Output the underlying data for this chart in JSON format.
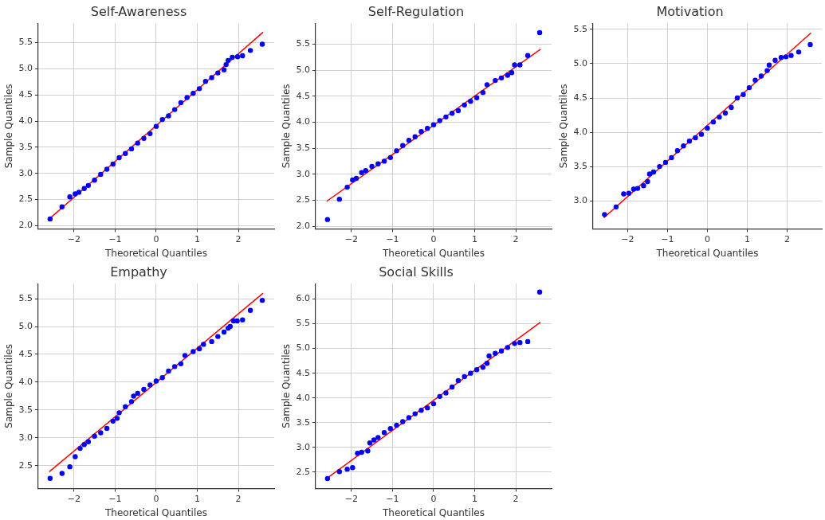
{
  "chart_data": [
    {
      "type": "scatter",
      "title": "Self-Awareness",
      "xlabel": "Theoretical Quantiles",
      "ylabel": "Sample Quantiles",
      "xlim": [
        -2.87,
        2.87
      ],
      "xticks": [
        -2,
        -1,
        0,
        1,
        2
      ],
      "ylim": [
        1.94,
        5.87
      ],
      "yticks": [
        {
          "value": 2,
          "label": "2.0"
        },
        2.5,
        {
          "value": 3,
          "label": "3.0"
        },
        3.5,
        {
          "value": 4,
          "label": "4.0"
        },
        4.5,
        {
          "value": 5,
          "label": "5.0"
        },
        5.5
      ],
      "grid": true,
      "series": [
        {
          "color": "#0000ff",
          "marker": "circle",
          "x": [
            -2.58,
            -2.29,
            -2.1,
            -1.97,
            -1.88,
            -1.75,
            -1.65,
            -1.5,
            -1.35,
            -1.2,
            -1.05,
            -0.9,
            -0.75,
            -0.6,
            -0.45,
            -0.3,
            -0.15,
            0,
            0.15,
            0.3,
            0.45,
            0.6,
            0.75,
            0.9,
            1.05,
            1.2,
            1.35,
            1.5,
            1.65,
            1.7,
            1.75,
            1.85,
            1.98,
            2.1,
            2.29,
            2.58
          ],
          "values": [
            2.13,
            2.36,
            2.55,
            2.61,
            2.64,
            2.71,
            2.77,
            2.87,
            2.98,
            3.08,
            3.18,
            3.3,
            3.38,
            3.47,
            3.58,
            3.67,
            3.76,
            3.9,
            4.03,
            4.1,
            4.22,
            4.35,
            4.45,
            4.53,
            4.62,
            4.76,
            4.83,
            4.92,
            4.98,
            5.08,
            5.16,
            5.22,
            5.23,
            5.25,
            5.35,
            5.47
          ]
        },
        {
          "type": "line",
          "color": "#ff0000",
          "x": [
            -2.6,
            2.6
          ],
          "values": [
            2.13,
            5.7
          ]
        }
      ]
    },
    {
      "type": "scatter",
      "title": "Self-Regulation",
      "xlabel": "Theoretical Quantiles",
      "ylabel": "Sample Quantiles",
      "xlim": [
        -2.87,
        2.87
      ],
      "xticks": [
        -2,
        -1,
        0,
        1,
        2
      ],
      "ylim": [
        1.95,
        5.9
      ],
      "yticks": [
        {
          "value": 2,
          "label": "2.0"
        },
        2.5,
        {
          "value": 3,
          "label": "3.0"
        },
        3.5,
        {
          "value": 4,
          "label": "4.0"
        },
        4.5,
        {
          "value": 5,
          "label": "5.0"
        },
        5.5
      ],
      "grid": true,
      "series": [
        {
          "color": "#0000ff",
          "marker": "circle",
          "x": [
            -2.58,
            -2.29,
            -2.1,
            -1.97,
            -1.88,
            -1.75,
            -1.65,
            -1.5,
            -1.35,
            -1.2,
            -1.05,
            -0.9,
            -0.75,
            -0.6,
            -0.45,
            -0.3,
            -0.15,
            0,
            0.15,
            0.3,
            0.45,
            0.6,
            0.75,
            0.9,
            1.05,
            1.2,
            1.3,
            1.5,
            1.65,
            1.8,
            1.9,
            1.97,
            2.1,
            2.29,
            2.58
          ],
          "values": [
            2.13,
            2.52,
            2.75,
            2.89,
            2.92,
            3.03,
            3.07,
            3.15,
            3.2,
            3.25,
            3.32,
            3.45,
            3.55,
            3.65,
            3.72,
            3.82,
            3.88,
            3.95,
            4.03,
            4.1,
            4.17,
            4.22,
            4.33,
            4.4,
            4.47,
            4.57,
            4.72,
            4.8,
            4.85,
            4.9,
            4.95,
            5.1,
            5.1,
            5.28,
            5.72
          ]
        },
        {
          "type": "line",
          "color": "#ff0000",
          "x": [
            -2.6,
            2.6
          ],
          "values": [
            2.48,
            5.4
          ]
        }
      ]
    },
    {
      "type": "scatter",
      "title": "Motivation",
      "xlabel": "Theoretical Quantiles",
      "ylabel": "Sample Quantiles",
      "xlim": [
        -2.87,
        2.87
      ],
      "xticks": [
        -2,
        -1,
        0,
        1,
        2
      ],
      "ylim": [
        2.59,
        5.59
      ],
      "yticks": [
        {
          "value": 3,
          "label": "3.0"
        },
        3.5,
        {
          "value": 4,
          "label": "4.0"
        },
        4.5,
        {
          "value": 5,
          "label": "5.0"
        },
        5.5
      ],
      "grid": true,
      "series": [
        {
          "color": "#0000ff",
          "marker": "circle",
          "x": [
            -2.58,
            -2.29,
            -2.1,
            -1.97,
            -1.85,
            -1.75,
            -1.6,
            -1.5,
            -1.45,
            -1.35,
            -1.2,
            -1.05,
            -0.9,
            -0.75,
            -0.6,
            -0.45,
            -0.3,
            -0.15,
            0,
            0.15,
            0.3,
            0.45,
            0.6,
            0.75,
            0.9,
            1.05,
            1.2,
            1.35,
            1.5,
            1.55,
            1.7,
            1.85,
            1.97,
            2.1,
            2.29,
            2.58
          ],
          "values": [
            2.8,
            2.91,
            3.1,
            3.11,
            3.17,
            3.18,
            3.22,
            3.28,
            3.39,
            3.42,
            3.5,
            3.56,
            3.63,
            3.73,
            3.8,
            3.87,
            3.92,
            3.97,
            4.06,
            4.15,
            4.22,
            4.28,
            4.36,
            4.5,
            4.55,
            4.65,
            4.76,
            4.82,
            4.9,
            4.98,
            5.05,
            5.09,
            5.1,
            5.12,
            5.17,
            5.28
          ]
        },
        {
          "type": "line",
          "color": "#ff0000",
          "x": [
            -2.6,
            2.6
          ],
          "values": [
            2.75,
            5.45
          ]
        }
      ]
    },
    {
      "type": "scatter",
      "title": "Empathy",
      "xlabel": "Theoretical Quantiles",
      "ylabel": "Sample Quantiles",
      "xlim": [
        -2.87,
        2.87
      ],
      "xticks": [
        -2,
        -1,
        0,
        1,
        2
      ],
      "ylim": [
        2.09,
        5.77
      ],
      "yticks": [
        2.5,
        {
          "value": 3,
          "label": "3.0"
        },
        3.5,
        {
          "value": 4,
          "label": "4.0"
        },
        4.5,
        {
          "value": 5,
          "label": "5.0"
        },
        5.5
      ],
      "grid": true,
      "series": [
        {
          "color": "#0000ff",
          "marker": "circle",
          "x": [
            -2.58,
            -2.29,
            -2.1,
            -1.97,
            -1.85,
            -1.75,
            -1.65,
            -1.5,
            -1.35,
            -1.2,
            -1.05,
            -0.95,
            -0.9,
            -0.75,
            -0.6,
            -0.55,
            -0.45,
            -0.3,
            -0.15,
            0,
            0.15,
            0.3,
            0.45,
            0.6,
            0.7,
            0.9,
            1.05,
            1.15,
            1.35,
            1.5,
            1.65,
            1.75,
            1.8,
            1.88,
            1.97,
            2.1,
            2.29,
            2.58
          ],
          "values": [
            2.27,
            2.36,
            2.48,
            2.66,
            2.81,
            2.88,
            2.93,
            3.03,
            3.09,
            3.17,
            3.3,
            3.35,
            3.45,
            3.56,
            3.65,
            3.75,
            3.8,
            3.87,
            3.95,
            4.02,
            4.08,
            4.2,
            4.28,
            4.33,
            4.48,
            4.55,
            4.6,
            4.68,
            4.73,
            4.82,
            4.9,
            4.97,
            5.0,
            5.1,
            5.1,
            5.12,
            5.29,
            5.47
          ]
        },
        {
          "type": "line",
          "color": "#ff0000",
          "x": [
            -2.6,
            2.6
          ],
          "values": [
            2.39,
            5.6
          ]
        }
      ]
    },
    {
      "type": "scatter",
      "title": "Social Skills",
      "xlabel": "Theoretical Quantiles",
      "ylabel": "Sample Quantiles",
      "xlim": [
        -2.87,
        2.87
      ],
      "xticks": [
        -2,
        -1,
        0,
        1,
        2
      ],
      "ylim": [
        2.17,
        6.31
      ],
      "yticks": [
        2.5,
        {
          "value": 3,
          "label": "3.0"
        },
        3.5,
        {
          "value": 4,
          "label": "4.0"
        },
        4.5,
        {
          "value": 5,
          "label": "5.0"
        },
        5.5,
        {
          "value": 6,
          "label": "6.0"
        }
      ],
      "grid": true,
      "series": [
        {
          "color": "#0000ff",
          "marker": "circle",
          "x": [
            -2.58,
            -2.29,
            -2.1,
            -1.97,
            -1.85,
            -1.75,
            -1.6,
            -1.55,
            -1.45,
            -1.35,
            -1.2,
            -1.05,
            -0.9,
            -0.75,
            -0.6,
            -0.45,
            -0.3,
            -0.15,
            0,
            0.15,
            0.3,
            0.45,
            0.6,
            0.75,
            0.9,
            1.05,
            1.2,
            1.3,
            1.35,
            1.5,
            1.65,
            1.8,
            1.97,
            2.1,
            2.29,
            2.58
          ],
          "values": [
            2.37,
            2.51,
            2.56,
            2.59,
            2.88,
            2.9,
            2.93,
            3.09,
            3.15,
            3.2,
            3.3,
            3.38,
            3.45,
            3.52,
            3.6,
            3.68,
            3.75,
            3.8,
            3.88,
            4.03,
            4.1,
            4.22,
            4.35,
            4.43,
            4.5,
            4.57,
            4.62,
            4.7,
            4.85,
            4.9,
            4.95,
            5.02,
            5.1,
            5.12,
            5.14,
            6.14
          ]
        },
        {
          "type": "line",
          "color": "#ff0000",
          "x": [
            -2.6,
            2.6
          ],
          "values": [
            2.37,
            5.53
          ]
        }
      ]
    }
  ]
}
